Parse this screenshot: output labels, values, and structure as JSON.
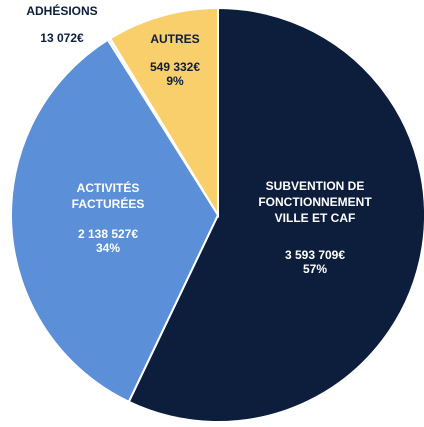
{
  "chart_data": {
    "type": "pie",
    "categories": [
      "SUBVENTION DE\nFONCTIONNEMENT\nVILLE ET CAF",
      "ACTIVITÉS\nFACTURÉES",
      "ADHÉSIONS",
      "AUTRES"
    ],
    "values": [
      3593709,
      2138527,
      13072,
      549332
    ],
    "value_labels": [
      "3 593 709€",
      "2 138 527€",
      "13 072€",
      "549 332€"
    ],
    "percent_labels": [
      "57%",
      "34%",
      null,
      "9%"
    ],
    "colors": [
      "#0c1e3b",
      "#5b8fd8",
      "#eeeeee",
      "#f9cf6c"
    ]
  }
}
